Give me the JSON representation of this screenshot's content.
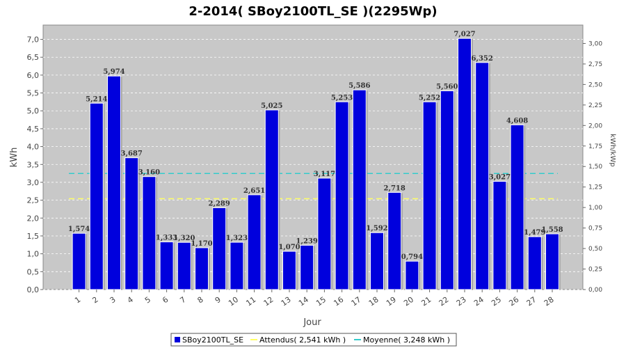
{
  "chart_data": {
    "type": "bar",
    "title": "2-2014( SBoy2100TL_SE )(2295Wp)",
    "xlabel": "Jour",
    "ylabel": "kWh",
    "ylabel_right": "kWh/kWp",
    "ylim": [
      0,
      7.4
    ],
    "ylim_right": [
      0,
      3.2244
    ],
    "yticks": [
      "0,0",
      "0,5",
      "1,0",
      "1,5",
      "2,0",
      "2,5",
      "3,0",
      "3,5",
      "4,0",
      "4,5",
      "5,0",
      "5,5",
      "6,0",
      "6,5",
      "7,0"
    ],
    "yticks_right": [
      "0,00",
      "0,25",
      "0,50",
      "0,75",
      "1,00",
      "1,25",
      "1,50",
      "1,75",
      "2,00",
      "2,25",
      "2,50",
      "2,75",
      "3,00"
    ],
    "categories": [
      "1",
      "2",
      "3",
      "4",
      "5",
      "6",
      "7",
      "8",
      "9",
      "10",
      "11",
      "12",
      "13",
      "14",
      "15",
      "16",
      "17",
      "18",
      "19",
      "20",
      "21",
      "22",
      "23",
      "24",
      "25",
      "26",
      "27",
      "28"
    ],
    "series": [
      {
        "name": "SBoy2100TL_SE",
        "color": "#0000dd",
        "values": [
          1.574,
          5.214,
          5.974,
          3.687,
          3.16,
          1.333,
          1.32,
          1.17,
          2.289,
          1.323,
          2.651,
          5.025,
          1.07,
          1.239,
          3.117,
          5.253,
          5.586,
          1.592,
          2.718,
          0.794,
          5.252,
          5.56,
          7.027,
          6.352,
          3.027,
          4.608,
          1.479,
          1.558
        ],
        "labels": [
          "1,574",
          "5,214",
          "5,974",
          "3,687",
          "3,160",
          "1,333",
          "1,320",
          "1,170",
          "2,289",
          "1,323",
          "2,651",
          "5,025",
          "1,070",
          "1,239",
          "3,117",
          "5,253",
          "5,586",
          "1,592",
          "2,718",
          "0,794",
          "5,252",
          "5,560",
          "7,027",
          "6,352",
          "3,027",
          "4,608",
          "1,479",
          "1,558"
        ]
      }
    ],
    "reference_lines": [
      {
        "name": "Attendus( 2,541 kWh )",
        "value": 2.541,
        "color": "#ffff66"
      },
      {
        "name": "Moyenne( 3,248 kWh )",
        "value": 3.248,
        "color": "#33cccc"
      }
    ],
    "grid": true,
    "legend_placement": "bottom"
  }
}
